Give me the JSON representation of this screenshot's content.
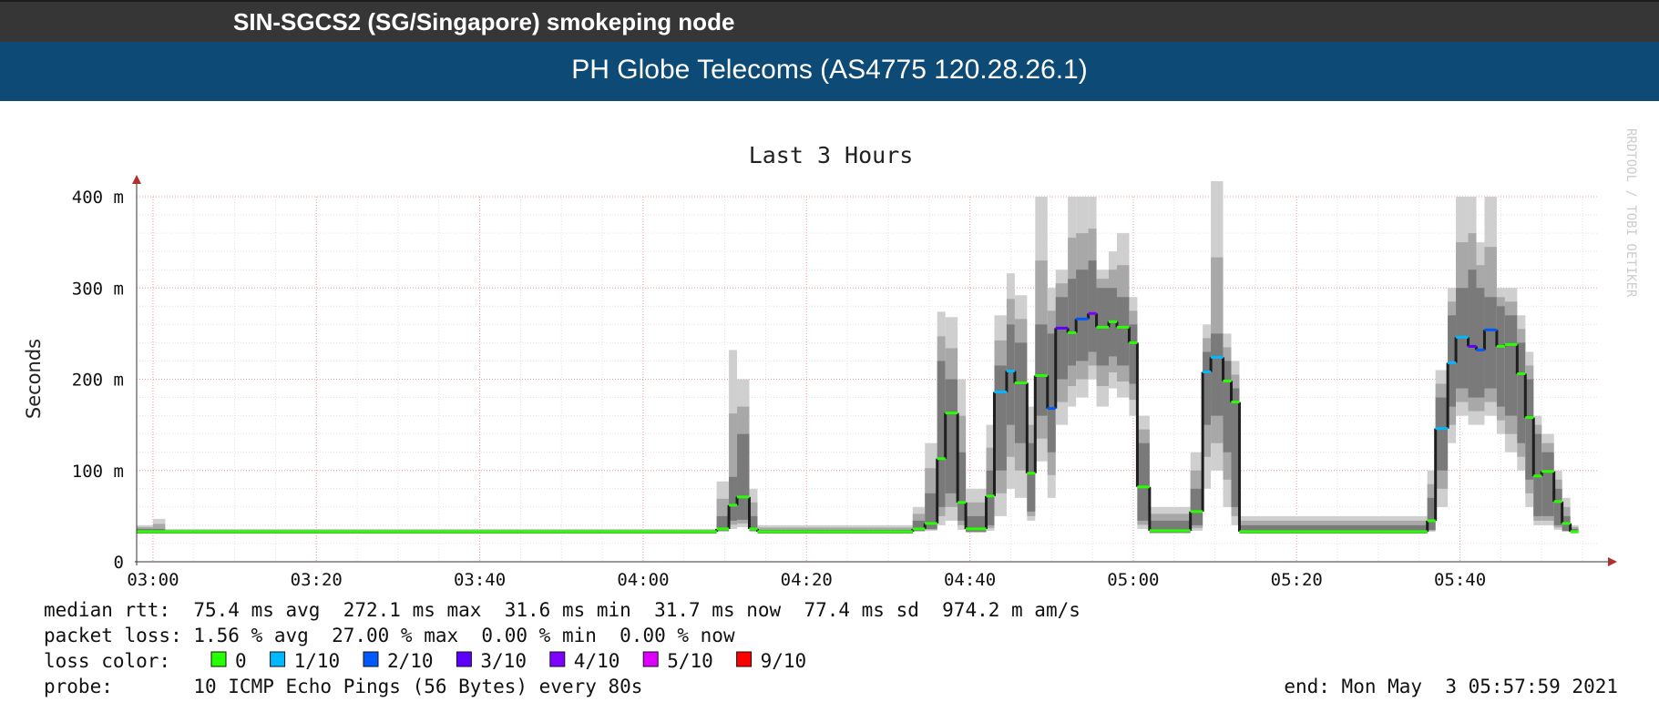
{
  "header": {
    "node_title": "SIN-SGCS2 (SG/Singapore) smokeping node",
    "target_title": "PH Globe Telecoms (AS4775 120.28.26.1)"
  },
  "chart_data": {
    "type": "line",
    "title": "Last 3 Hours",
    "ylabel": "Seconds",
    "watermark": "RRDTOOL / TOBI OETIKER",
    "ylim": [
      0,
      0.4
    ],
    "y_ticks": [
      {
        "value": 0,
        "label": "0"
      },
      {
        "value": 0.1,
        "label": "100 m"
      },
      {
        "value": 0.2,
        "label": "200 m"
      },
      {
        "value": 0.3,
        "label": "300 m"
      },
      {
        "value": 0.4,
        "label": "400 m"
      }
    ],
    "x_ticks": [
      "03:00",
      "03:20",
      "03:40",
      "04:00",
      "04:20",
      "04:40",
      "05:00",
      "05:20",
      "05:40"
    ],
    "x_unit": "minutes after 03:00",
    "xlim": [
      -2,
      177
    ],
    "grid": true,
    "loss_colors": {
      "0": "#26ff00",
      "1/10": "#00b8ff",
      "2/10": "#0059ff",
      "3/10": "#5e00ff",
      "4/10": "#7e00ff",
      "5/10": "#dd00ff",
      "9/10": "#ff0000"
    },
    "median_steps": [
      {
        "t": -2,
        "v": 0.033,
        "loss": "0"
      },
      {
        "t": 69,
        "v": 0.036,
        "loss": "0"
      },
      {
        "t": 70.5,
        "v": 0.062,
        "loss": "0"
      },
      {
        "t": 71.5,
        "v": 0.071,
        "loss": "0"
      },
      {
        "t": 73,
        "v": 0.036,
        "loss": "0"
      },
      {
        "t": 74,
        "v": 0.033,
        "loss": "0"
      },
      {
        "t": 93,
        "v": 0.036,
        "loss": "0"
      },
      {
        "t": 94.5,
        "v": 0.042,
        "loss": "0"
      },
      {
        "t": 96,
        "v": 0.113,
        "loss": "0"
      },
      {
        "t": 97,
        "v": 0.163,
        "loss": "0"
      },
      {
        "t": 98.5,
        "v": 0.065,
        "loss": "0"
      },
      {
        "t": 99.5,
        "v": 0.036,
        "loss": "0"
      },
      {
        "t": 102,
        "v": 0.072,
        "loss": "0"
      },
      {
        "t": 103,
        "v": 0.186,
        "loss": "1/10"
      },
      {
        "t": 104.5,
        "v": 0.209,
        "loss": "1/10"
      },
      {
        "t": 105.5,
        "v": 0.196,
        "loss": "0"
      },
      {
        "t": 107,
        "v": 0.097,
        "loss": "0"
      },
      {
        "t": 108,
        "v": 0.204,
        "loss": "0"
      },
      {
        "t": 109.5,
        "v": 0.168,
        "loss": "2/10"
      },
      {
        "t": 110.5,
        "v": 0.256,
        "loss": "3/10"
      },
      {
        "t": 112,
        "v": 0.251,
        "loss": "0"
      },
      {
        "t": 113,
        "v": 0.266,
        "loss": "2/10"
      },
      {
        "t": 114.5,
        "v": 0.272,
        "loss": "4/10"
      },
      {
        "t": 115.5,
        "v": 0.257,
        "loss": "0"
      },
      {
        "t": 117,
        "v": 0.263,
        "loss": "0"
      },
      {
        "t": 118,
        "v": 0.257,
        "loss": "0"
      },
      {
        "t": 119.5,
        "v": 0.24,
        "loss": "0"
      },
      {
        "t": 120.5,
        "v": 0.082,
        "loss": "0"
      },
      {
        "t": 122,
        "v": 0.034,
        "loss": "0"
      },
      {
        "t": 127,
        "v": 0.055,
        "loss": "0"
      },
      {
        "t": 128.5,
        "v": 0.208,
        "loss": "1/10"
      },
      {
        "t": 129.5,
        "v": 0.224,
        "loss": "1/10"
      },
      {
        "t": 131,
        "v": 0.198,
        "loss": "0"
      },
      {
        "t": 132,
        "v": 0.175,
        "loss": "0"
      },
      {
        "t": 133,
        "v": 0.033,
        "loss": "0"
      },
      {
        "t": 156,
        "v": 0.045,
        "loss": "0"
      },
      {
        "t": 157,
        "v": 0.146,
        "loss": "1/10"
      },
      {
        "t": 158.5,
        "v": 0.218,
        "loss": "1/10"
      },
      {
        "t": 159.5,
        "v": 0.246,
        "loss": "1/10"
      },
      {
        "t": 161,
        "v": 0.236,
        "loss": "3/10"
      },
      {
        "t": 162,
        "v": 0.232,
        "loss": "2/10"
      },
      {
        "t": 163,
        "v": 0.254,
        "loss": "2/10"
      },
      {
        "t": 164.5,
        "v": 0.236,
        "loss": "0"
      },
      {
        "t": 165.5,
        "v": 0.238,
        "loss": "0"
      },
      {
        "t": 167,
        "v": 0.206,
        "loss": "0"
      },
      {
        "t": 168,
        "v": 0.158,
        "loss": "0"
      },
      {
        "t": 169,
        "v": 0.094,
        "loss": "0"
      },
      {
        "t": 170,
        "v": 0.099,
        "loss": "0"
      },
      {
        "t": 171.5,
        "v": 0.066,
        "loss": "0"
      },
      {
        "t": 172.5,
        "v": 0.042,
        "loss": "0"
      },
      {
        "t": 173.5,
        "v": 0.033,
        "loss": "0"
      }
    ],
    "median_end": 174.5,
    "smoke_bands": [
      {
        "t": -2,
        "lo": 0.031,
        "hi": 0.036,
        "min": 0.031,
        "max": 0.04
      },
      {
        "t": 0,
        "lo": 0.031,
        "hi": 0.036,
        "min": 0.031,
        "max": 0.047
      },
      {
        "t": 1.5,
        "lo": 0.031,
        "hi": 0.034,
        "min": 0.031,
        "max": 0.036
      },
      {
        "t": 69,
        "lo": 0.034,
        "hi": 0.05,
        "min": 0.033,
        "max": 0.088
      },
      {
        "t": 70.5,
        "lo": 0.045,
        "hi": 0.093,
        "min": 0.036,
        "max": 0.232
      },
      {
        "t": 71.5,
        "lo": 0.046,
        "hi": 0.14,
        "min": 0.038,
        "max": 0.2
      },
      {
        "t": 73,
        "lo": 0.034,
        "hi": 0.05,
        "min": 0.033,
        "max": 0.08
      },
      {
        "t": 74,
        "lo": 0.031,
        "hi": 0.035,
        "min": 0.031,
        "max": 0.04
      },
      {
        "t": 93,
        "lo": 0.034,
        "hi": 0.045,
        "min": 0.033,
        "max": 0.06
      },
      {
        "t": 94.5,
        "lo": 0.036,
        "hi": 0.075,
        "min": 0.034,
        "max": 0.13
      },
      {
        "t": 96,
        "lo": 0.06,
        "hi": 0.22,
        "min": 0.04,
        "max": 0.274
      },
      {
        "t": 97,
        "lo": 0.075,
        "hi": 0.2,
        "min": 0.045,
        "max": 0.268
      },
      {
        "t": 98.5,
        "lo": 0.045,
        "hi": 0.12,
        "min": 0.035,
        "max": 0.2
      },
      {
        "t": 99.5,
        "lo": 0.033,
        "hi": 0.05,
        "min": 0.032,
        "max": 0.08
      },
      {
        "t": 102,
        "lo": 0.04,
        "hi": 0.1,
        "min": 0.034,
        "max": 0.15
      },
      {
        "t": 103,
        "lo": 0.1,
        "hi": 0.215,
        "min": 0.05,
        "max": 0.27
      },
      {
        "t": 104.5,
        "lo": 0.15,
        "hi": 0.26,
        "min": 0.08,
        "max": 0.316
      },
      {
        "t": 105.5,
        "lo": 0.13,
        "hi": 0.24,
        "min": 0.07,
        "max": 0.292
      },
      {
        "t": 107,
        "lo": 0.055,
        "hi": 0.13,
        "min": 0.045,
        "max": 0.17
      },
      {
        "t": 108,
        "lo": 0.16,
        "hi": 0.26,
        "min": 0.11,
        "max": 0.4
      },
      {
        "t": 109.5,
        "lo": 0.12,
        "hi": 0.25,
        "min": 0.07,
        "max": 0.3
      },
      {
        "t": 110.5,
        "lo": 0.2,
        "hi": 0.29,
        "min": 0.15,
        "max": 0.32
      },
      {
        "t": 112,
        "lo": 0.215,
        "hi": 0.31,
        "min": 0.17,
        "max": 0.4
      },
      {
        "t": 113,
        "lo": 0.22,
        "hi": 0.32,
        "min": 0.18,
        "max": 0.4
      },
      {
        "t": 114.5,
        "lo": 0.23,
        "hi": 0.33,
        "min": 0.2,
        "max": 0.4
      },
      {
        "t": 115.5,
        "lo": 0.215,
        "hi": 0.3,
        "min": 0.17,
        "max": 0.32
      },
      {
        "t": 117,
        "lo": 0.225,
        "hi": 0.3,
        "min": 0.19,
        "max": 0.34
      },
      {
        "t": 118,
        "lo": 0.215,
        "hi": 0.29,
        "min": 0.18,
        "max": 0.36
      },
      {
        "t": 119.5,
        "lo": 0.195,
        "hi": 0.26,
        "min": 0.16,
        "max": 0.29
      },
      {
        "t": 120.5,
        "lo": 0.045,
        "hi": 0.13,
        "min": 0.036,
        "max": 0.16
      },
      {
        "t": 122,
        "lo": 0.032,
        "hi": 0.045,
        "min": 0.031,
        "max": 0.06
      },
      {
        "t": 127,
        "lo": 0.04,
        "hi": 0.08,
        "min": 0.034,
        "max": 0.12
      },
      {
        "t": 128.5,
        "lo": 0.15,
        "hi": 0.23,
        "min": 0.08,
        "max": 0.26
      },
      {
        "t": 129.5,
        "lo": 0.16,
        "hi": 0.25,
        "min": 0.1,
        "max": 0.417
      },
      {
        "t": 131,
        "lo": 0.12,
        "hi": 0.22,
        "min": 0.06,
        "max": 0.25
      },
      {
        "t": 132,
        "lo": 0.06,
        "hi": 0.19,
        "min": 0.04,
        "max": 0.22
      },
      {
        "t": 133,
        "lo": 0.031,
        "hi": 0.04,
        "min": 0.031,
        "max": 0.05
      },
      {
        "t": 156,
        "lo": 0.035,
        "hi": 0.07,
        "min": 0.033,
        "max": 0.1
      },
      {
        "t": 157,
        "lo": 0.1,
        "hi": 0.18,
        "min": 0.06,
        "max": 0.21
      },
      {
        "t": 158.5,
        "lo": 0.17,
        "hi": 0.27,
        "min": 0.13,
        "max": 0.3
      },
      {
        "t": 159.5,
        "lo": 0.19,
        "hi": 0.3,
        "min": 0.16,
        "max": 0.4
      },
      {
        "t": 161,
        "lo": 0.18,
        "hi": 0.32,
        "min": 0.15,
        "max": 0.4
      },
      {
        "t": 162,
        "lo": 0.18,
        "hi": 0.3,
        "min": 0.15,
        "max": 0.35
      },
      {
        "t": 163,
        "lo": 0.19,
        "hi": 0.29,
        "min": 0.16,
        "max": 0.4
      },
      {
        "t": 164.5,
        "lo": 0.17,
        "hi": 0.28,
        "min": 0.14,
        "max": 0.3
      },
      {
        "t": 165.5,
        "lo": 0.16,
        "hi": 0.27,
        "min": 0.12,
        "max": 0.3
      },
      {
        "t": 167,
        "lo": 0.13,
        "hi": 0.24,
        "min": 0.1,
        "max": 0.27
      },
      {
        "t": 168,
        "lo": 0.09,
        "hi": 0.2,
        "min": 0.06,
        "max": 0.23
      },
      {
        "t": 169,
        "lo": 0.05,
        "hi": 0.14,
        "min": 0.04,
        "max": 0.16
      },
      {
        "t": 170,
        "lo": 0.05,
        "hi": 0.12,
        "min": 0.04,
        "max": 0.14
      },
      {
        "t": 171.5,
        "lo": 0.04,
        "hi": 0.08,
        "min": 0.035,
        "max": 0.1
      },
      {
        "t": 172.5,
        "lo": 0.034,
        "hi": 0.05,
        "min": 0.033,
        "max": 0.07
      },
      {
        "t": 173.5,
        "lo": 0.032,
        "hi": 0.036,
        "min": 0.031,
        "max": 0.04
      }
    ],
    "smoke_end": 174.5
  },
  "legend": {
    "median_rtt": "median rtt:  75.4 ms avg  272.1 ms max  31.6 ms min  31.7 ms now  77.4 ms sd  974.2 m am/s",
    "packet_loss": "packet loss: 1.56 % avg  27.00 % max  0.00 % min  0.00 % now",
    "loss_color_label": "loss color:",
    "loss_colors": [
      {
        "label": "0",
        "color": "#26ff00"
      },
      {
        "label": "1/10",
        "color": "#00b8ff"
      },
      {
        "label": "2/10",
        "color": "#0059ff"
      },
      {
        "label": "3/10",
        "color": "#5e00ff"
      },
      {
        "label": "4/10",
        "color": "#7e00ff"
      },
      {
        "label": "5/10",
        "color": "#dd00ff"
      },
      {
        "label": "9/10",
        "color": "#ff0000"
      }
    ],
    "probe": "probe:       10 ICMP Echo Pings (56 Bytes) every 80s",
    "end": "end: Mon May  3 05:57:59 2021"
  }
}
